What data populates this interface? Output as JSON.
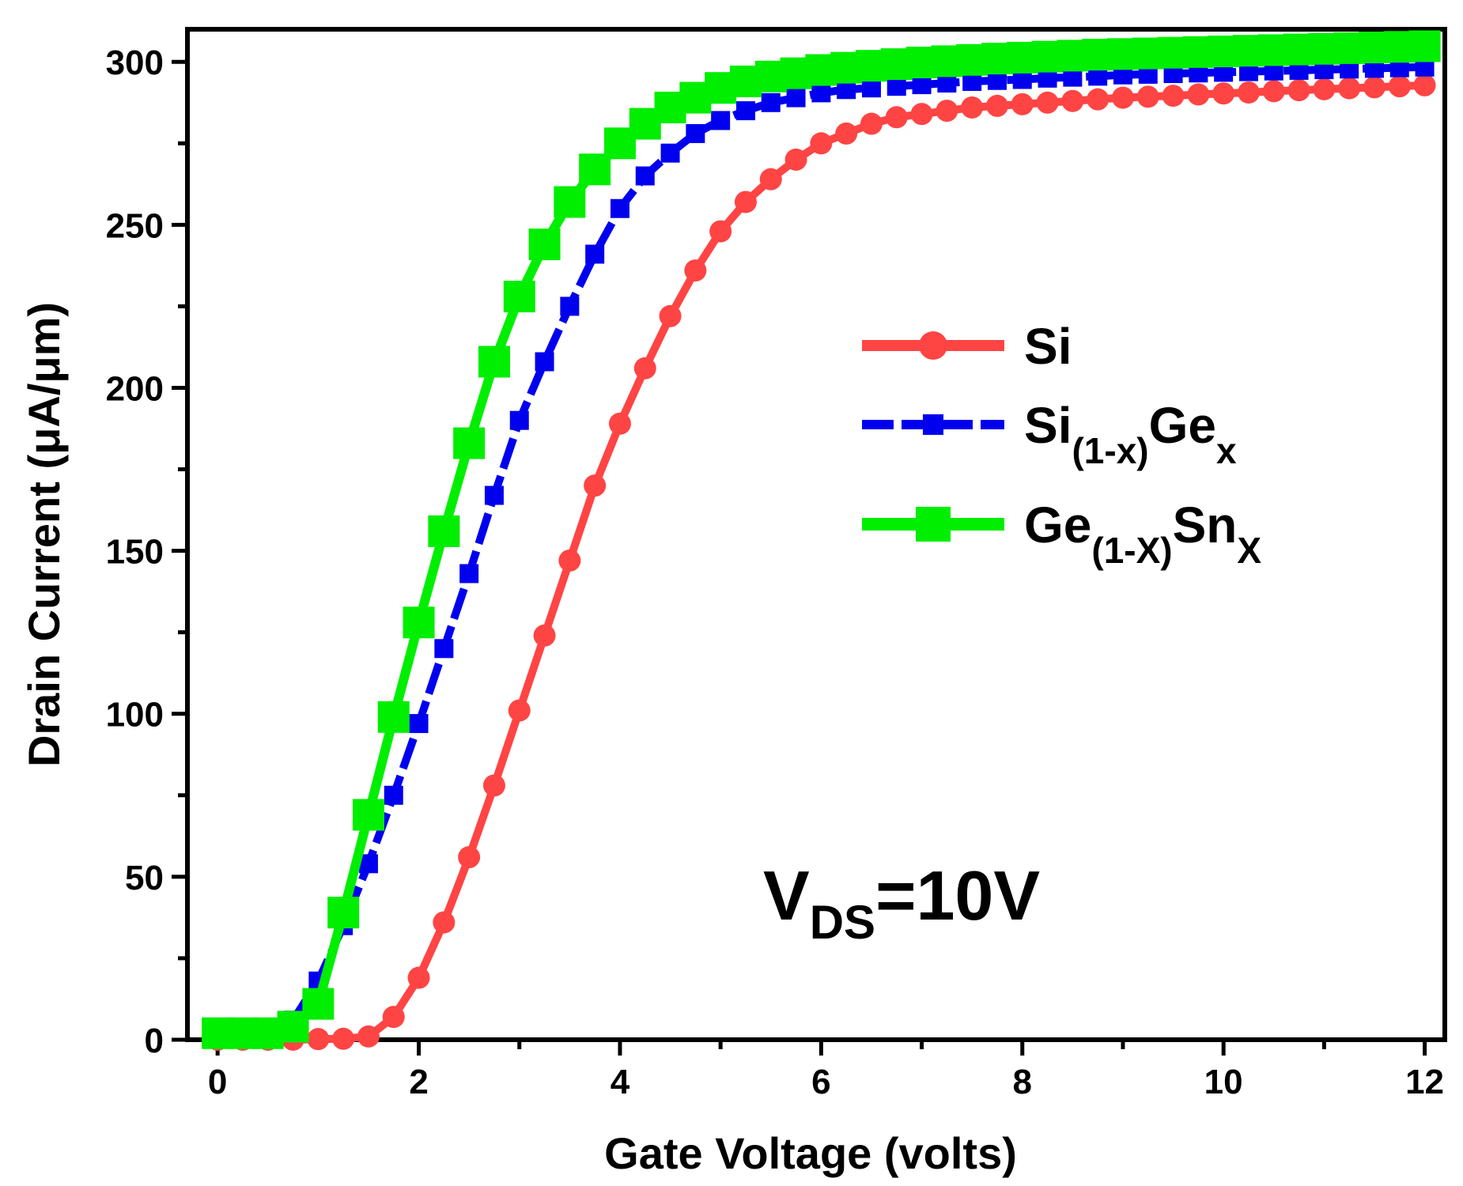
{
  "chart_data": {
    "type": "line",
    "title": "",
    "xlabel": "Gate Voltage (volts)",
    "ylabel": "Drain Current (μA/μm)",
    "xlim": [
      -0.3,
      12.2
    ],
    "ylim": [
      0,
      310
    ],
    "xticks": [
      0,
      2,
      4,
      6,
      8,
      10,
      12
    ],
    "yticks": [
      0,
      50,
      100,
      150,
      200,
      250,
      300
    ],
    "x": [
      0,
      0.25,
      0.5,
      0.75,
      1,
      1.25,
      1.5,
      1.75,
      2,
      2.25,
      2.5,
      2.75,
      3,
      3.25,
      3.5,
      3.75,
      4,
      4.25,
      4.5,
      4.75,
      5,
      5.25,
      5.5,
      5.75,
      6,
      6.25,
      6.5,
      6.75,
      7,
      7.25,
      7.5,
      7.75,
      8,
      8.25,
      8.5,
      8.75,
      9,
      9.25,
      9.5,
      9.75,
      10,
      10.25,
      10.5,
      10.75,
      11,
      11.25,
      11.5,
      11.75,
      12
    ],
    "series": [
      {
        "name": "Si",
        "color": "#ff4444",
        "marker": "circle",
        "values": [
          0,
          0,
          0,
          0,
          0.2,
          0.3,
          1,
          7,
          19,
          36,
          56,
          78,
          101,
          124,
          147,
          170,
          189,
          206,
          222,
          236,
          248,
          257,
          264,
          270,
          275,
          278,
          281,
          283,
          284,
          285,
          286,
          286.5,
          287,
          287.5,
          288,
          288.5,
          289,
          289.3,
          289.6,
          290,
          290.3,
          290.6,
          291,
          291.3,
          291.6,
          291.9,
          292.2,
          292.5,
          292.8
        ]
      },
      {
        "name": "Si(1-x)Gex",
        "color": "#0000ee",
        "marker": "square",
        "values": [
          0.5,
          0.5,
          1,
          6,
          18,
          35,
          54,
          75,
          97,
          120,
          143,
          167,
          190,
          208,
          225,
          241,
          255,
          265,
          272,
          278,
          282,
          285,
          287.5,
          289,
          290.5,
          291.5,
          292,
          292.5,
          293,
          293.5,
          294,
          294.3,
          294.6,
          295,
          295.3,
          295.6,
          296,
          296.2,
          296.4,
          296.6,
          296.8,
          297,
          297.2,
          297.4,
          297.6,
          297.8,
          298,
          298.2,
          298.4
        ]
      },
      {
        "name": "Ge(1-X)SnX",
        "color": "#00ee00",
        "marker": "square",
        "values": [
          2,
          2,
          2,
          4,
          11,
          39,
          69,
          99,
          128,
          156,
          183,
          208,
          228,
          244,
          257,
          267,
          275,
          281,
          286,
          289,
          292,
          294,
          295.5,
          296.5,
          297.5,
          298.2,
          298.8,
          299.3,
          299.8,
          300.2,
          300.6,
          301,
          301.3,
          301.6,
          301.9,
          302.2,
          302.4,
          302.6,
          302.8,
          303,
          303.2,
          303.4,
          303.6,
          303.8,
          304,
          304.2,
          304.4,
          304.6,
          304.8
        ]
      }
    ],
    "legend": {
      "position": "center-right",
      "entries": [
        {
          "base": "Si",
          "sub1": "",
          "mid": "",
          "sub2": ""
        },
        {
          "base": "Si",
          "sub1": "(1-x)",
          "mid": "Ge",
          "sub2": "x"
        },
        {
          "base": "Ge",
          "sub1": "(1-X)",
          "mid": "Sn",
          "sub2": "X"
        }
      ]
    },
    "annotation": {
      "prefix": "V",
      "sub": "DS",
      "suffix": "=10V"
    }
  }
}
